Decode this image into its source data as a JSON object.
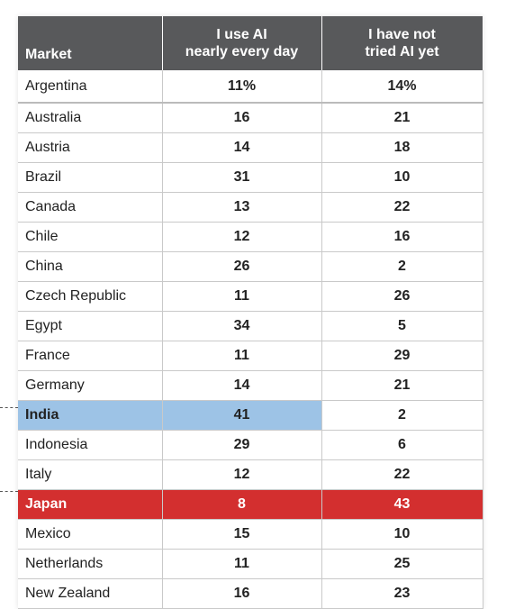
{
  "table": {
    "header": [
      "Market",
      "I use AI\nnearly every day",
      "I have not\ntried AI yet"
    ],
    "rows": [
      [
        "Argentina",
        "11%",
        "14%"
      ],
      [
        "Australia",
        "16",
        "21"
      ],
      [
        "Austria",
        "14",
        "18"
      ],
      [
        "Brazil",
        "31",
        "10"
      ],
      [
        "Canada",
        "13",
        "22"
      ],
      [
        "Chile",
        "12",
        "16"
      ],
      [
        "China",
        "26",
        "2"
      ],
      [
        "Czech Republic",
        "11",
        "26"
      ],
      [
        "Egypt",
        "34",
        "5"
      ],
      [
        "France",
        "11",
        "29"
      ],
      [
        "Germany",
        "14",
        "21"
      ],
      [
        "India",
        "41",
        "2"
      ],
      [
        "Indonesia",
        "29",
        "6"
      ],
      [
        "Italy",
        "12",
        "22"
      ],
      [
        "Japan",
        "8",
        "43"
      ],
      [
        "Mexico",
        "15",
        "10"
      ],
      [
        "Netherlands",
        "11",
        "25"
      ],
      [
        "New Zealand",
        "16",
        "23"
      ]
    ]
  }
}
